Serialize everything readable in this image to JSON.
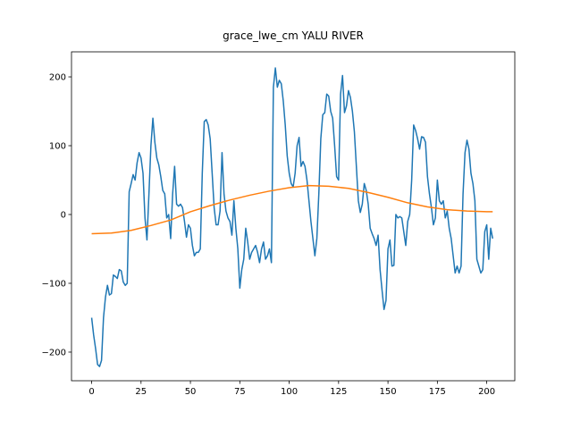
{
  "chart_data": {
    "type": "line",
    "title": "grace_lwe_cm YALU RIVER",
    "xlim": [
      -10.2,
      214.2
    ],
    "ylim": [
      -241.6,
      236.4
    ],
    "xticks": [
      0,
      25,
      50,
      75,
      100,
      125,
      150,
      175,
      200
    ],
    "yticks": [
      {
        "value": -200,
        "label": "−200"
      },
      {
        "value": -100,
        "label": "−100"
      },
      0,
      100,
      200
    ],
    "series": [
      {
        "color": "#1f77b4",
        "values": [
          -150,
          -175,
          -195,
          -218,
          -221,
          -212,
          -150,
          -120,
          -103,
          -117,
          -115,
          -88,
          -90,
          -93,
          -80,
          -82,
          -98,
          -103,
          -100,
          33,
          45,
          58,
          50,
          75,
          90,
          82,
          60,
          -5,
          -37,
          30,
          100,
          140,
          105,
          82,
          72,
          55,
          35,
          30,
          -5,
          0,
          -35,
          30,
          70,
          15,
          12,
          15,
          10,
          -10,
          -33,
          -15,
          -20,
          -45,
          -60,
          -55,
          -55,
          -50,
          60,
          135,
          138,
          130,
          110,
          60,
          10,
          -15,
          -15,
          5,
          90,
          30,
          5,
          -5,
          -10,
          -30,
          20,
          -20,
          -50,
          -107,
          -80,
          -65,
          -20,
          -40,
          -65,
          -55,
          -50,
          -45,
          -55,
          -70,
          -50,
          -40,
          -65,
          -60,
          -50,
          -70,
          185,
          213,
          185,
          195,
          190,
          165,
          130,
          85,
          60,
          45,
          40,
          60,
          100,
          112,
          70,
          77,
          70,
          50,
          20,
          -10,
          -35,
          -60,
          -35,
          30,
          110,
          145,
          148,
          175,
          172,
          150,
          140,
          100,
          55,
          50,
          175,
          202,
          148,
          158,
          180,
          170,
          150,
          120,
          70,
          20,
          3,
          15,
          45,
          35,
          15,
          -20,
          -28,
          -35,
          -45,
          -30,
          -80,
          -110,
          -138,
          -125,
          -50,
          -37,
          -75,
          -74,
          0,
          -5,
          -3,
          -5,
          -25,
          -45,
          -10,
          0,
          50,
          130,
          122,
          110,
          95,
          113,
          112,
          105,
          55,
          30,
          10,
          -15,
          -5,
          50,
          20,
          15,
          20,
          -5,
          5,
          -20,
          -35,
          -60,
          -85,
          -75,
          -85,
          -75,
          30,
          90,
          108,
          95,
          60,
          45,
          20,
          -65,
          -75,
          -85,
          -80,
          -25,
          -15,
          -65,
          -20,
          -35
        ]
      },
      {
        "color": "#ff7f0e",
        "x": [
          0,
          10,
          20,
          30,
          40,
          50,
          60,
          70,
          80,
          90,
          100,
          110,
          120,
          130,
          140,
          150,
          160,
          170,
          180,
          190,
          200,
          203
        ],
        "values": [
          -28,
          -27,
          -23,
          -16,
          -8,
          4,
          13,
          21,
          28,
          34,
          39,
          42,
          41,
          38,
          32,
          25,
          17,
          11,
          7,
          5,
          4,
          4
        ]
      }
    ]
  }
}
